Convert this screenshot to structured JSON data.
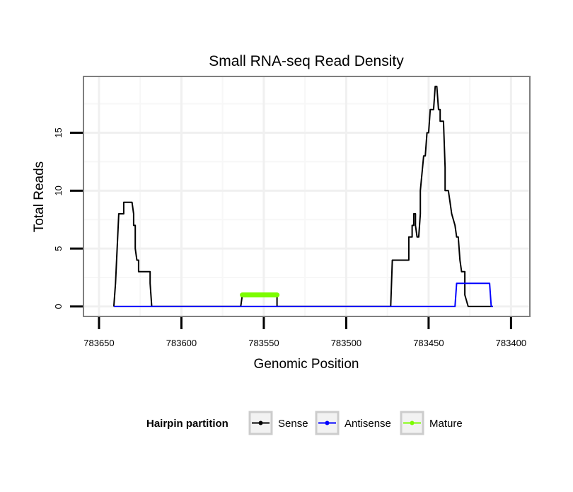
{
  "chart_data": {
    "type": "line",
    "title": "Small RNA-seq Read Density",
    "xlabel": "Genomic Position",
    "ylabel": "Total Reads",
    "x_reversed": true,
    "xlim": [
      783659,
      783389
    ],
    "ylim": [
      -0.8,
      19.8
    ],
    "x_ticks": [
      783650,
      783600,
      783550,
      783500,
      783450,
      783400
    ],
    "x_tick_labels": [
      "783650",
      "783600",
      "783550",
      "783500",
      "783450",
      "783400"
    ],
    "y_ticks": [
      0,
      5,
      10,
      15
    ],
    "y_tick_labels": [
      "0",
      "5",
      "10",
      "15"
    ],
    "grid": true,
    "legend": {
      "title": "Hairpin partition",
      "position": "bottom",
      "entries": [
        "Sense",
        "Antisense",
        "Mature"
      ]
    },
    "series": [
      {
        "name": "Sense",
        "color": "#000000",
        "x": [
          783641,
          783640,
          783639,
          783639,
          783638,
          783638,
          783635,
          783635,
          783631,
          783630,
          783629,
          783629,
          783628,
          783628,
          783627,
          783627,
          783626,
          783626,
          783624,
          783624,
          783619,
          783619,
          783618,
          783617,
          783564,
          783563,
          783563,
          783542,
          783542,
          783541,
          783540,
          783475,
          783473,
          783472,
          783464,
          783463,
          783462,
          783462,
          783460,
          783460,
          783459,
          783459,
          783458,
          783458,
          783457,
          783456,
          783455,
          783455,
          783453,
          783452,
          783451,
          783450,
          783449,
          783449,
          783447,
          783446,
          783445,
          783445,
          783444,
          783443,
          783443,
          783441,
          783440,
          783440,
          783438,
          783437,
          783436,
          783436,
          783434,
          783434,
          783433,
          783432,
          783431,
          783430,
          783428,
          783428,
          783426,
          783425,
          783424,
          783423,
          783423,
          783421,
          783420,
          783419,
          783418,
          783417,
          783416,
          783416,
          783415,
          783415,
          783414,
          783411
        ],
        "y": [
          0,
          2,
          5,
          5,
          8,
          8,
          8,
          9,
          9,
          9,
          8,
          7,
          7,
          5,
          4,
          4,
          4,
          3,
          3,
          3,
          3,
          2,
          0,
          0,
          0,
          1,
          1,
          1,
          0,
          0,
          0,
          0,
          0,
          4,
          4,
          4,
          4,
          6,
          6,
          7,
          7,
          8,
          8,
          7,
          6,
          6,
          8,
          10,
          13,
          13,
          15,
          15,
          17,
          17,
          17,
          19,
          19,
          19,
          17,
          17,
          16,
          16,
          12,
          10,
          10,
          9,
          8,
          8,
          7,
          7,
          6,
          6,
          4,
          3,
          3,
          1,
          0,
          0,
          0,
          0,
          0,
          0,
          0,
          0,
          0,
          0,
          0,
          0,
          0,
          0,
          0,
          0
        ]
      },
      {
        "name": "Antisense",
        "color": "#0000ff",
        "x": [
          783641,
          783434,
          783433,
          783413,
          783412,
          783411
        ],
        "y": [
          0,
          0,
          2,
          2,
          0,
          0
        ]
      },
      {
        "name": "Mature",
        "color": "#7cfc00",
        "x": [
          783563,
          783542
        ],
        "y": [
          1,
          1
        ]
      }
    ]
  }
}
